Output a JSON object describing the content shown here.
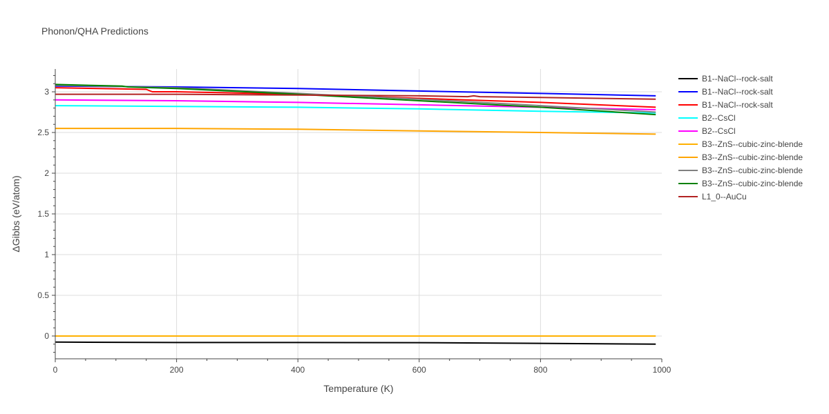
{
  "chart_data": {
    "type": "line",
    "title": "Phonon/QHA Predictions",
    "xlabel": "Temperature (K)",
    "ylabel": "ΔGibbs (eV/atom)",
    "xlim": [
      0,
      1000
    ],
    "ylim": [
      -0.28,
      3.28
    ],
    "xticks": [
      0,
      200,
      400,
      600,
      800,
      1000
    ],
    "xtick_labels": [
      "0",
      "200",
      "400",
      "600",
      "800",
      "1000"
    ],
    "yticks": [
      0,
      0.5,
      1,
      1.5,
      2,
      2.5,
      3
    ],
    "ytick_labels": [
      "0",
      "0.5",
      "1",
      "1.5",
      "2",
      "2.5",
      "3"
    ],
    "grid": true,
    "legend_position": "right",
    "series": [
      {
        "name": "B1--NaCl--rock-salt",
        "color": "#000000",
        "x": [
          0,
          200,
          400,
          600,
          800,
          990
        ],
        "y": [
          -0.075,
          -0.08,
          -0.08,
          -0.082,
          -0.09,
          -0.1
        ]
      },
      {
        "name": "B1--NaCl--rock-salt",
        "color": "#0000ff",
        "x": [
          0,
          200,
          400,
          600,
          800,
          990
        ],
        "y": [
          3.07,
          3.06,
          3.04,
          3.01,
          2.98,
          2.95
        ]
      },
      {
        "name": "B1--NaCl--rock-salt",
        "color": "#ff0000",
        "x": [
          0,
          150,
          160,
          200,
          400,
          600,
          800,
          990
        ],
        "y": [
          3.05,
          3.03,
          3.0,
          3.0,
          2.97,
          2.92,
          2.87,
          2.81
        ]
      },
      {
        "name": "B2--CsCl",
        "color": "#00ffff",
        "x": [
          0,
          200,
          400,
          600,
          800,
          990
        ],
        "y": [
          2.83,
          2.82,
          2.81,
          2.79,
          2.76,
          2.74
        ]
      },
      {
        "name": "B2--CsCl",
        "color": "#ff00ff",
        "x": [
          0,
          200,
          400,
          600,
          800,
          990
        ],
        "y": [
          2.9,
          2.89,
          2.87,
          2.84,
          2.81,
          2.78
        ]
      },
      {
        "name": "B3--ZnS--cubic-zinc-blende",
        "color": "#ffb000",
        "x": [
          0,
          200,
          400,
          600,
          800,
          990
        ],
        "y": [
          0.0,
          0.0,
          0.0,
          0.0,
          0.0,
          0.0
        ]
      },
      {
        "name": "B3--ZnS--cubic-zinc-blende",
        "color": "#ffa500",
        "x": [
          0,
          200,
          400,
          600,
          800,
          990
        ],
        "y": [
          2.55,
          2.55,
          2.54,
          2.52,
          2.5,
          2.48
        ]
      },
      {
        "name": "B3--ZnS--cubic-zinc-blende",
        "color": "#808080",
        "x": [
          0,
          200,
          400,
          600,
          800,
          990
        ],
        "y": [
          3.08,
          3.05,
          2.98,
          2.91,
          2.83,
          2.75
        ]
      },
      {
        "name": "B3--ZnS--cubic-zinc-blende",
        "color": "#008000",
        "x": [
          0,
          110,
          120,
          200,
          400,
          600,
          800,
          990
        ],
        "y": [
          3.09,
          3.07,
          3.06,
          3.04,
          2.97,
          2.89,
          2.81,
          2.72
        ]
      },
      {
        "name": "L1_0--AuCu",
        "color": "#b22222",
        "x": [
          0,
          200,
          400,
          600,
          680,
          690,
          700,
          800,
          990
        ],
        "y": [
          2.97,
          2.97,
          2.96,
          2.95,
          2.94,
          2.95,
          2.94,
          2.93,
          2.91
        ]
      }
    ]
  }
}
